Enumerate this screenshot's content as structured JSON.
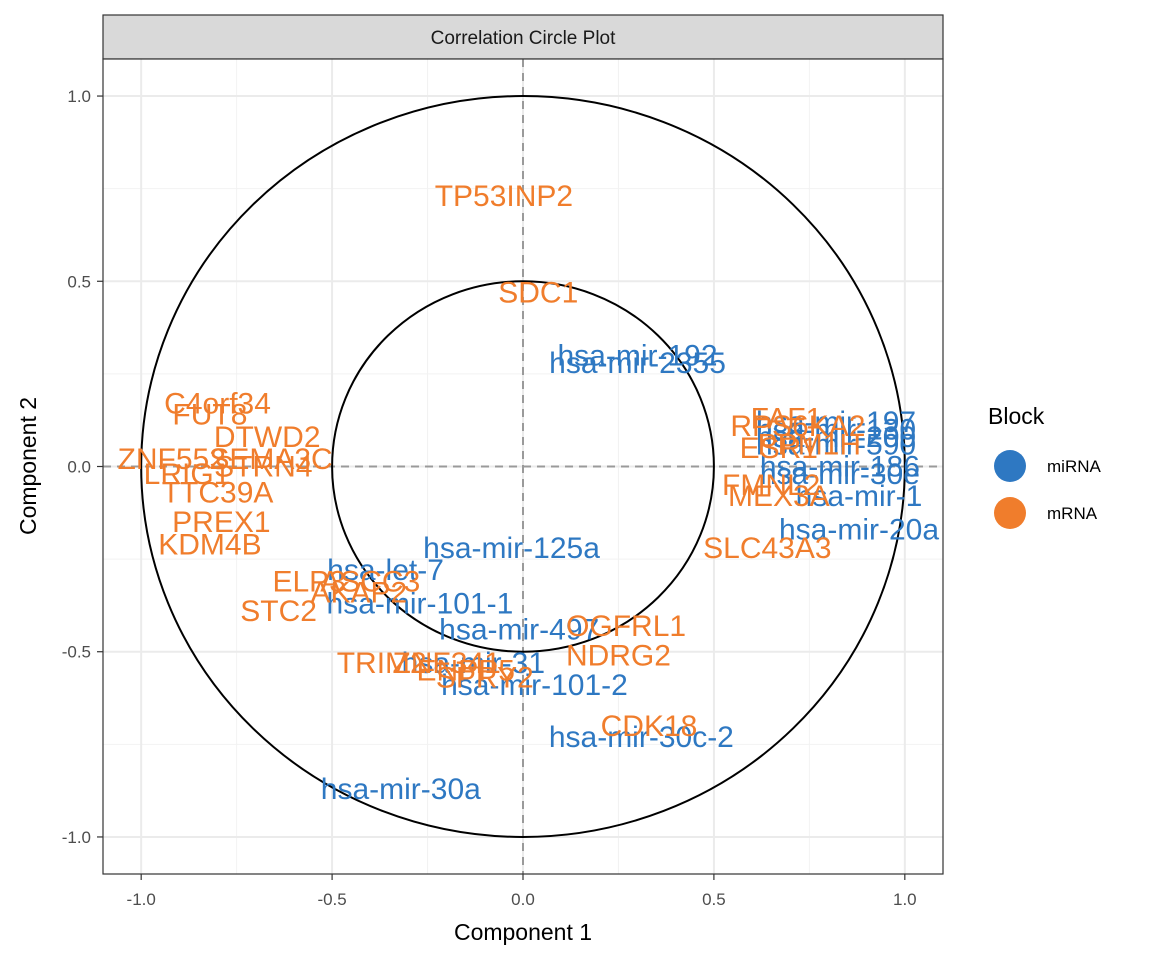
{
  "chart_data": {
    "type": "scatter",
    "title": "Correlation Circle Plot",
    "xlabel": "Component  1",
    "ylabel": "Component  2",
    "xlim": [
      -1.1,
      1.1
    ],
    "ylim": [
      -1.1,
      1.1
    ],
    "xticks": [
      -1.0,
      -0.5,
      0.0,
      0.5,
      1.0
    ],
    "yticks": [
      -1.0,
      -0.5,
      0.0,
      0.5,
      1.0
    ],
    "xtick_labels": [
      "-1.0",
      "-0.5",
      "0.0",
      "0.5",
      "1.0"
    ],
    "ytick_labels": [
      "-1.0",
      "-0.5",
      "0.0",
      "0.5",
      "1.0"
    ],
    "grid": true,
    "circles": [
      1.0,
      0.5
    ],
    "reference_lines": {
      "x": 0,
      "y": 0
    },
    "legend": {
      "title": "Block",
      "position": "right",
      "entries": [
        {
          "label": "miRNA",
          "color": "#2E78C2"
        },
        {
          "label": "mRNA",
          "color": "#F07D2C"
        }
      ]
    },
    "series": [
      {
        "name": "miRNA",
        "color": "#2E78C2",
        "points": [
          {
            "label": "hsa-mir-192",
            "x": 0.3,
            "y": 0.3
          },
          {
            "label": "hsa-mir-2355",
            "x": 0.3,
            "y": 0.28
          },
          {
            "label": "hsa-mir-125a",
            "x": -0.03,
            "y": -0.22
          },
          {
            "label": "hsa-let-7",
            "x": -0.36,
            "y": -0.28
          },
          {
            "label": "hsa-mir-101-1",
            "x": -0.27,
            "y": -0.37
          },
          {
            "label": "hsa-mir-497",
            "x": -0.01,
            "y": -0.44
          },
          {
            "label": "hsa-mir-31",
            "x": -0.13,
            "y": -0.53
          },
          {
            "label": "hsa-mir-101-2",
            "x": 0.03,
            "y": -0.59
          },
          {
            "label": "hsa-mir-30c-2",
            "x": 0.31,
            "y": -0.73
          },
          {
            "label": "hsa-mir-30a",
            "x": -0.32,
            "y": -0.87
          },
          {
            "label": "hsa-mir-197",
            "x": 0.82,
            "y": 0.12
          },
          {
            "label": "hsa-mir-130",
            "x": 0.82,
            "y": 0.1
          },
          {
            "label": "hsa-mir-200",
            "x": 0.82,
            "y": 0.08
          },
          {
            "label": "hsa-mir-590",
            "x": 0.82,
            "y": 0.06
          },
          {
            "label": "hsa-mir-186",
            "x": 0.83,
            "y": 0.0
          },
          {
            "label": "hsa-mir-30e",
            "x": 0.83,
            "y": -0.02
          },
          {
            "label": "hsa-mir-1",
            "x": 0.88,
            "y": -0.08
          },
          {
            "label": "hsa-mir-20a",
            "x": 0.88,
            "y": -0.17
          }
        ]
      },
      {
        "name": "mRNA",
        "color": "#F07D2C",
        "points": [
          {
            "label": "TP53INP2",
            "x": -0.05,
            "y": 0.73
          },
          {
            "label": "SDC1",
            "x": 0.04,
            "y": 0.47
          },
          {
            "label": "C4orf34",
            "x": -0.8,
            "y": 0.17
          },
          {
            "label": "FUT8",
            "x": -0.82,
            "y": 0.14
          },
          {
            "label": "DTWD2",
            "x": -0.67,
            "y": 0.08
          },
          {
            "label": "ZNF552",
            "x": -0.92,
            "y": 0.02
          },
          {
            "label": "SEMA3C",
            "x": -0.66,
            "y": 0.02
          },
          {
            "label": "STRN4",
            "x": -0.68,
            "y": 0.0
          },
          {
            "label": "LRIG1",
            "x": -0.88,
            "y": -0.02
          },
          {
            "label": "TTC39A",
            "x": -0.8,
            "y": -0.07
          },
          {
            "label": "PREX1",
            "x": -0.79,
            "y": -0.15
          },
          {
            "label": "KDM4B",
            "x": -0.82,
            "y": -0.21
          },
          {
            "label": "ELP3",
            "x": -0.56,
            "y": -0.31
          },
          {
            "label": "ASCC3",
            "x": -0.4,
            "y": -0.31
          },
          {
            "label": "AKAP2",
            "x": -0.43,
            "y": -0.34
          },
          {
            "label": "STC2",
            "x": -0.64,
            "y": -0.39
          },
          {
            "label": "OGFRL1",
            "x": 0.27,
            "y": -0.43
          },
          {
            "label": "NDRG2",
            "x": 0.25,
            "y": -0.51
          },
          {
            "label": "TRIM2",
            "x": -0.37,
            "y": -0.53
          },
          {
            "label": "ZNF341",
            "x": -0.2,
            "y": -0.53
          },
          {
            "label": "SPRY2",
            "x": -0.1,
            "y": -0.57
          },
          {
            "label": "ENPP5",
            "x": -0.15,
            "y": -0.55
          },
          {
            "label": "CDK18",
            "x": 0.33,
            "y": -0.7
          },
          {
            "label": "FAF1",
            "x": 0.69,
            "y": 0.13
          },
          {
            "label": "RPS6KA2",
            "x": 0.72,
            "y": 0.11
          },
          {
            "label": "PPM1H",
            "x": 0.75,
            "y": 0.06
          },
          {
            "label": "ESR1",
            "x": 0.67,
            "y": 0.05
          },
          {
            "label": "FMNL2",
            "x": 0.65,
            "y": -0.05
          },
          {
            "label": "MEX3A",
            "x": 0.67,
            "y": -0.08
          },
          {
            "label": "SLC43A3",
            "x": 0.64,
            "y": -0.22
          }
        ]
      }
    ]
  }
}
